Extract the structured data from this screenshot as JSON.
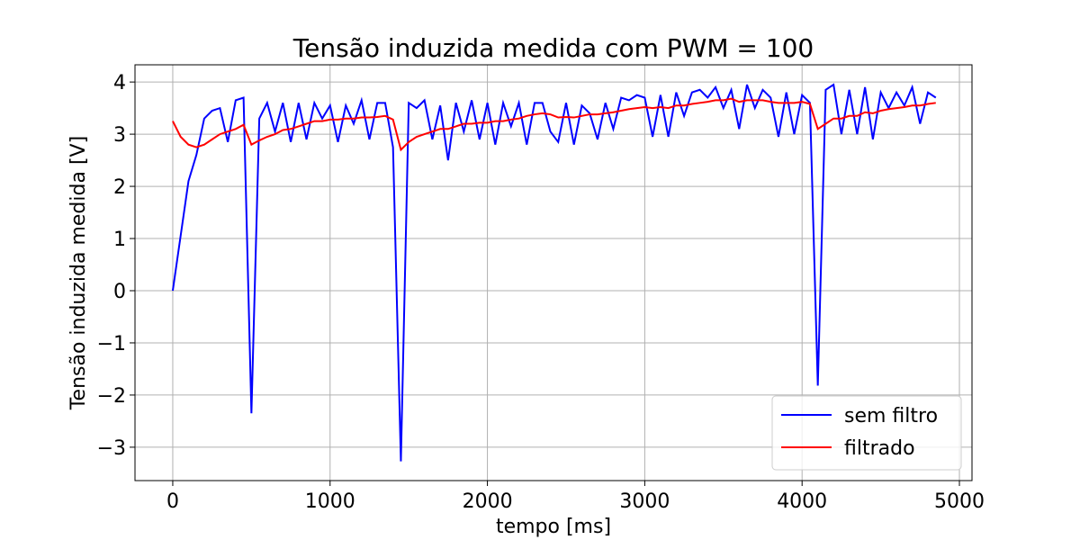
{
  "chart_data": {
    "type": "line",
    "title": "Tensão induzida medida com PWM = 100",
    "xlabel": "tempo [ms]",
    "ylabel": "Tensão induzida medida [V]",
    "x": [
      0,
      50,
      100,
      150,
      200,
      250,
      300,
      350,
      400,
      450,
      500,
      550,
      600,
      650,
      700,
      750,
      800,
      850,
      900,
      950,
      1000,
      1050,
      1100,
      1150,
      1200,
      1250,
      1300,
      1350,
      1400,
      1450,
      1500,
      1550,
      1600,
      1650,
      1700,
      1750,
      1800,
      1850,
      1900,
      1950,
      2000,
      2050,
      2100,
      2150,
      2200,
      2250,
      2300,
      2350,
      2400,
      2450,
      2500,
      2550,
      2600,
      2650,
      2700,
      2750,
      2800,
      2850,
      2900,
      2950,
      3000,
      3050,
      3100,
      3150,
      3200,
      3250,
      3300,
      3350,
      3400,
      3450,
      3500,
      3550,
      3600,
      3650,
      3700,
      3750,
      3800,
      3850,
      3900,
      3950,
      4000,
      4050,
      4100,
      4150,
      4200,
      4250,
      4300,
      4350,
      4400,
      4450,
      4500,
      4550,
      4600,
      4650,
      4700,
      4750,
      4800,
      4850
    ],
    "series": [
      {
        "name": "sem filtro",
        "color": "#0000ff",
        "values": [
          0,
          1.05,
          2.1,
          2.6,
          3.3,
          3.45,
          3.5,
          2.85,
          3.65,
          3.7,
          -2.35,
          3.3,
          3.6,
          3.05,
          3.6,
          2.85,
          3.6,
          2.9,
          3.6,
          3.3,
          3.55,
          2.85,
          3.55,
          3.2,
          3.65,
          2.9,
          3.6,
          3.6,
          2.75,
          -3.27,
          3.6,
          3.5,
          3.65,
          2.9,
          3.55,
          2.5,
          3.6,
          3.05,
          3.65,
          2.9,
          3.6,
          2.8,
          3.6,
          3.15,
          3.6,
          2.8,
          3.6,
          3.6,
          3.05,
          2.85,
          3.6,
          2.8,
          3.55,
          3.4,
          2.9,
          3.6,
          3.1,
          3.7,
          3.65,
          3.75,
          3.7,
          2.95,
          3.75,
          2.95,
          3.8,
          3.35,
          3.8,
          3.85,
          3.7,
          3.9,
          3.5,
          3.85,
          3.1,
          3.95,
          3.5,
          3.85,
          3.7,
          2.95,
          3.8,
          3.0,
          3.75,
          3.6,
          -1.82,
          3.85,
          3.95,
          3.0,
          3.85,
          3.0,
          3.9,
          2.9,
          3.8,
          3.5,
          3.8,
          3.55,
          3.9,
          3.2,
          3.8,
          3.7
        ]
      },
      {
        "name": "filtrado",
        "color": "#ff0000",
        "values": [
          3.25,
          2.95,
          2.8,
          2.75,
          2.8,
          2.9,
          3.0,
          3.05,
          3.1,
          3.18,
          2.8,
          2.88,
          2.95,
          3.0,
          3.08,
          3.1,
          3.15,
          3.2,
          3.25,
          3.25,
          3.28,
          3.28,
          3.3,
          3.3,
          3.32,
          3.32,
          3.33,
          3.35,
          3.28,
          2.7,
          2.85,
          2.95,
          3.0,
          3.05,
          3.1,
          3.1,
          3.15,
          3.2,
          3.2,
          3.22,
          3.22,
          3.25,
          3.25,
          3.28,
          3.3,
          3.35,
          3.38,
          3.4,
          3.38,
          3.32,
          3.33,
          3.32,
          3.35,
          3.38,
          3.38,
          3.4,
          3.42,
          3.45,
          3.48,
          3.5,
          3.52,
          3.5,
          3.52,
          3.5,
          3.55,
          3.55,
          3.58,
          3.6,
          3.62,
          3.65,
          3.65,
          3.68,
          3.62,
          3.65,
          3.65,
          3.65,
          3.62,
          3.6,
          3.6,
          3.6,
          3.62,
          3.58,
          3.1,
          3.2,
          3.3,
          3.3,
          3.35,
          3.35,
          3.42,
          3.4,
          3.45,
          3.48,
          3.5,
          3.52,
          3.55,
          3.55,
          3.58,
          3.6
        ]
      }
    ],
    "xlim": [
      -240,
      5080
    ],
    "ylim": [
      -3.64,
      4.33
    ],
    "xticks": [
      0,
      1000,
      2000,
      3000,
      4000,
      5000
    ],
    "yticks": [
      {
        "value": -3,
        "label": "−3"
      },
      {
        "value": -2,
        "label": "−2"
      },
      {
        "value": -1,
        "label": "−1"
      },
      0,
      1,
      2,
      3,
      4
    ],
    "grid": true,
    "legend": "lower right"
  }
}
